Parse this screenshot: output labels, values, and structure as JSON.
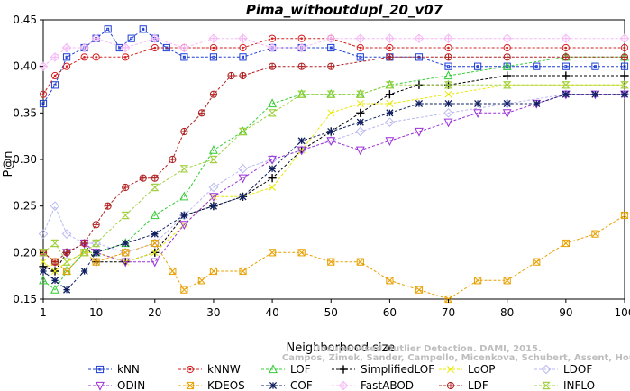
{
  "chart_data": {
    "type": "line",
    "title": "Pima_withoutdupl_20_v07",
    "xlabel": "Neighborhood size",
    "ylabel": "P@n",
    "xlim": [
      1,
      100
    ],
    "ylim": [
      0.15,
      0.45
    ],
    "x_ticks": [
      "1",
      "10",
      "20",
      "30",
      "40",
      "50",
      "60",
      "70",
      "80",
      "90",
      "100"
    ],
    "y_ticks": [
      "0.15",
      "0.20",
      "0.25",
      "0.30",
      "0.35",
      "0.40",
      "0.45"
    ],
    "grid": false,
    "legend_position": "bottom",
    "watermark": [
      "Campos, Zimek, Sander, Campello, Micenkova, Schubert, Assent, Houle",
      "Unsupervised Outlier Detection. DAMI, 2015."
    ],
    "series": [
      {
        "name": "kNN",
        "color": "#1f3fd6",
        "marker": "square",
        "x": [
          1,
          3,
          5,
          8,
          10,
          12,
          14,
          16,
          18,
          20,
          22,
          25,
          30,
          35,
          40,
          45,
          50,
          55,
          60,
          65,
          70,
          75,
          80,
          85,
          90,
          95,
          100
        ],
        "y": [
          0.36,
          0.38,
          0.41,
          0.42,
          0.43,
          0.44,
          0.42,
          0.43,
          0.44,
          0.43,
          0.42,
          0.41,
          0.41,
          0.41,
          0.42,
          0.42,
          0.42,
          0.41,
          0.41,
          0.41,
          0.4,
          0.4,
          0.4,
          0.4,
          0.4,
          0.4,
          0.4
        ]
      },
      {
        "name": "kNNW",
        "color": "#d62020",
        "marker": "circle",
        "x": [
          1,
          3,
          5,
          8,
          10,
          15,
          20,
          25,
          30,
          35,
          40,
          45,
          50,
          55,
          60,
          70,
          80,
          90,
          100
        ],
        "y": [
          0.37,
          0.39,
          0.4,
          0.41,
          0.41,
          0.41,
          0.42,
          0.42,
          0.42,
          0.42,
          0.43,
          0.43,
          0.43,
          0.42,
          0.42,
          0.42,
          0.42,
          0.42,
          0.42
        ]
      },
      {
        "name": "LOF",
        "color": "#33cc33",
        "marker": "triangle",
        "x": [
          1,
          3,
          5,
          8,
          10,
          15,
          20,
          25,
          30,
          35,
          40,
          45,
          50,
          55,
          60,
          70,
          80,
          90,
          100
        ],
        "y": [
          0.17,
          0.16,
          0.18,
          0.2,
          0.2,
          0.21,
          0.24,
          0.26,
          0.31,
          0.33,
          0.36,
          0.37,
          0.37,
          0.37,
          0.38,
          0.39,
          0.4,
          0.41,
          0.41
        ]
      },
      {
        "name": "SimplifiedLOF",
        "color": "#000000",
        "marker": "plus",
        "x": [
          1,
          3,
          5,
          8,
          10,
          15,
          20,
          25,
          30,
          35,
          40,
          45,
          50,
          55,
          60,
          65,
          70,
          80,
          90,
          100
        ],
        "y": [
          0.185,
          0.18,
          0.2,
          0.21,
          0.19,
          0.19,
          0.2,
          0.24,
          0.25,
          0.26,
          0.28,
          0.31,
          0.33,
          0.35,
          0.37,
          0.38,
          0.38,
          0.39,
          0.39,
          0.39
        ]
      },
      {
        "name": "LoOP",
        "color": "#e8e800",
        "marker": "x",
        "x": [
          1,
          3,
          5,
          8,
          10,
          15,
          20,
          25,
          30,
          35,
          40,
          45,
          50,
          55,
          60,
          70,
          80,
          90,
          100
        ],
        "y": [
          0.19,
          0.18,
          0.19,
          0.2,
          0.2,
          0.19,
          0.2,
          0.23,
          0.26,
          0.26,
          0.27,
          0.31,
          0.35,
          0.36,
          0.36,
          0.37,
          0.38,
          0.38,
          0.38
        ]
      },
      {
        "name": "LDOF",
        "color": "#b8b8f0",
        "marker": "diamond",
        "x": [
          1,
          3,
          5,
          8,
          10,
          15,
          20,
          25,
          30,
          35,
          40,
          45,
          50,
          55,
          60,
          70,
          80,
          90,
          100
        ],
        "y": [
          0.22,
          0.25,
          0.22,
          0.21,
          0.21,
          0.2,
          0.21,
          0.24,
          0.27,
          0.29,
          0.3,
          0.31,
          0.32,
          0.33,
          0.34,
          0.35,
          0.36,
          0.37,
          0.37
        ]
      },
      {
        "name": "ODIN",
        "color": "#9b30d8",
        "marker": "triangle-down",
        "x": [
          1,
          3,
          5,
          8,
          10,
          15,
          20,
          25,
          30,
          35,
          40,
          45,
          50,
          55,
          60,
          65,
          70,
          75,
          80,
          85,
          90,
          95,
          100
        ],
        "y": [
          0.2,
          0.19,
          0.2,
          0.21,
          0.2,
          0.19,
          0.19,
          0.23,
          0.26,
          0.28,
          0.3,
          0.31,
          0.32,
          0.31,
          0.32,
          0.33,
          0.34,
          0.35,
          0.35,
          0.36,
          0.37,
          0.37,
          0.37
        ]
      },
      {
        "name": "KDEOS",
        "color": "#e8a000",
        "marker": "square-x",
        "x": [
          1,
          3,
          5,
          8,
          10,
          15,
          20,
          23,
          25,
          28,
          30,
          35,
          40,
          45,
          50,
          55,
          60,
          65,
          70,
          75,
          80,
          85,
          90,
          95,
          100
        ],
        "y": [
          0.2,
          0.19,
          0.18,
          0.2,
          0.19,
          0.2,
          0.21,
          0.18,
          0.16,
          0.17,
          0.18,
          0.18,
          0.2,
          0.2,
          0.19,
          0.19,
          0.17,
          0.16,
          0.15,
          0.17,
          0.17,
          0.19,
          0.21,
          0.22,
          0.24
        ]
      },
      {
        "name": "COF",
        "color": "#102060",
        "marker": "asterisk",
        "x": [
          1,
          3,
          5,
          8,
          10,
          15,
          20,
          25,
          30,
          35,
          40,
          45,
          50,
          55,
          60,
          65,
          70,
          75,
          80,
          85,
          90,
          95,
          100
        ],
        "y": [
          0.18,
          0.17,
          0.16,
          0.18,
          0.2,
          0.21,
          0.22,
          0.24,
          0.25,
          0.26,
          0.29,
          0.32,
          0.33,
          0.34,
          0.35,
          0.36,
          0.36,
          0.36,
          0.36,
          0.36,
          0.37,
          0.37,
          0.37
        ]
      },
      {
        "name": "FastABOD",
        "color": "#f5b8f5",
        "marker": "diamond-plus",
        "x": [
          1,
          3,
          5,
          8,
          10,
          15,
          20,
          25,
          30,
          35,
          40,
          45,
          50,
          55,
          60,
          65,
          70,
          80,
          90,
          100
        ],
        "y": [
          0.4,
          0.41,
          0.42,
          0.42,
          0.43,
          0.42,
          0.43,
          0.42,
          0.43,
          0.43,
          0.42,
          0.42,
          0.43,
          0.43,
          0.43,
          0.43,
          0.43,
          0.43,
          0.43,
          0.43
        ]
      },
      {
        "name": "LDF",
        "color": "#b02020",
        "marker": "circle-plus",
        "x": [
          1,
          3,
          5,
          8,
          10,
          12,
          15,
          18,
          20,
          23,
          25,
          28,
          30,
          33,
          35,
          40,
          45,
          50,
          60,
          70,
          80,
          90,
          100
        ],
        "y": [
          0.2,
          0.19,
          0.2,
          0.21,
          0.23,
          0.25,
          0.27,
          0.28,
          0.28,
          0.3,
          0.33,
          0.35,
          0.37,
          0.39,
          0.39,
          0.4,
          0.4,
          0.4,
          0.41,
          0.41,
          0.41,
          0.41,
          0.41
        ]
      },
      {
        "name": "INFLO",
        "color": "#a0d040",
        "marker": "hourglass",
        "x": [
          1,
          3,
          5,
          8,
          10,
          15,
          20,
          25,
          30,
          35,
          40,
          45,
          50,
          55,
          60,
          70,
          80,
          90,
          100
        ],
        "y": [
          0.2,
          0.21,
          0.19,
          0.2,
          0.21,
          0.24,
          0.27,
          0.29,
          0.3,
          0.33,
          0.35,
          0.37,
          0.37,
          0.37,
          0.38,
          0.38,
          0.38,
          0.38,
          0.38
        ]
      }
    ]
  }
}
